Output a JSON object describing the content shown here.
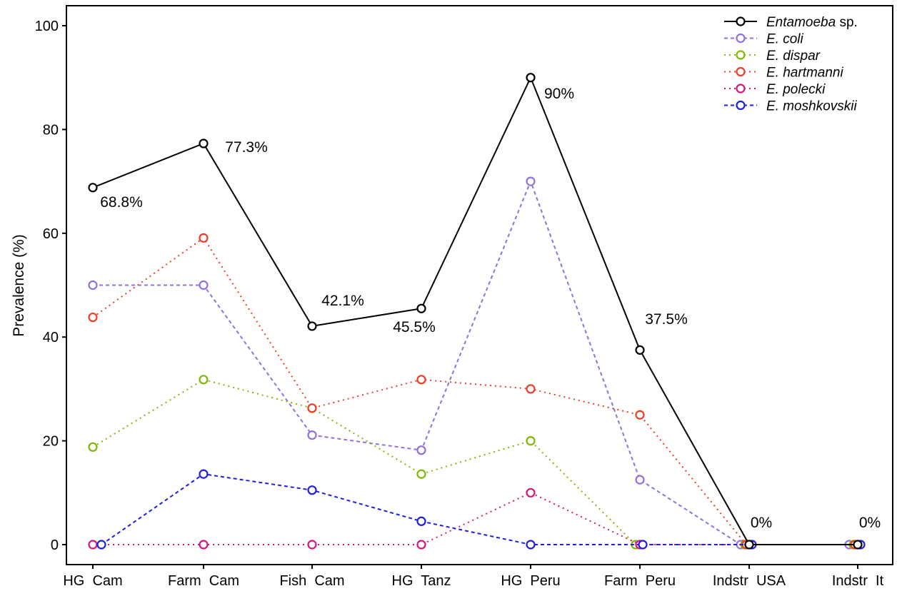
{
  "chart_data": {
    "type": "line",
    "title": "",
    "xlabel": "",
    "ylabel": "Prevalence (%)",
    "ylim": [
      0,
      100
    ],
    "yticks": [
      0,
      20,
      40,
      60,
      80,
      100
    ],
    "grid": false,
    "legend_position": "top-right",
    "categories": [
      "HG  Cam",
      "Farm  Cam",
      "Fish  Cam",
      "HG  Tanz",
      "HG  Peru",
      "Farm  Peru",
      "Indstr  USA",
      "Indstr  It"
    ],
    "series": [
      {
        "name_italic": "Entamoeba",
        "name_rest": " sp.",
        "color": "#000000",
        "dash": "solid",
        "values": [
          68.8,
          77.3,
          42.1,
          45.5,
          90,
          37.5,
          0,
          0
        ]
      },
      {
        "name_italic": "E. coli",
        "name_rest": "",
        "color": "#9370DB",
        "dash": "dashed",
        "values": [
          50,
          50,
          21.1,
          18.2,
          70,
          12.5,
          0,
          0
        ]
      },
      {
        "name_italic": "E. dispar",
        "name_rest": "",
        "color": "#7FB800",
        "dash": "dotted",
        "values": [
          18.8,
          31.8,
          26.3,
          13.6,
          20,
          0,
          0,
          0
        ]
      },
      {
        "name_italic": "E. hartmanni",
        "name_rest": "",
        "color": "#F03C28",
        "dash": "dotted",
        "values": [
          43.8,
          59.1,
          26.3,
          31.8,
          30,
          25,
          0,
          0
        ]
      },
      {
        "name_italic": "E. polecki",
        "name_rest": "",
        "color": "#DC1478",
        "dash": "dotted",
        "values": [
          0,
          0,
          0,
          0,
          10,
          0,
          0,
          0
        ]
      },
      {
        "name_italic": "E. moshkovskii",
        "name_rest": "",
        "color": "#1E1EE6",
        "dash": "dashed",
        "values": [
          0,
          13.6,
          10.5,
          4.5,
          0,
          0,
          0,
          0
        ]
      }
    ],
    "annotations": [
      "68.8%",
      "77.3%",
      "42.1%",
      "45.5%",
      "90%",
      "37.5%",
      "0%",
      "0%"
    ]
  }
}
